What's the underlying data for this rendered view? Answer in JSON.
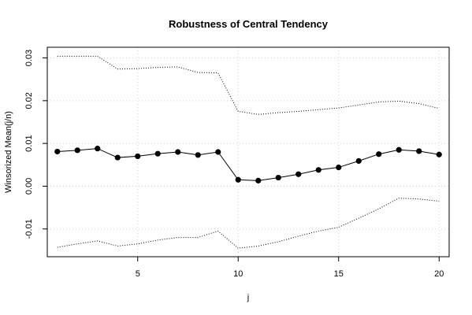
{
  "chart_data": {
    "type": "line",
    "title": "Robustness of Central Tendency",
    "xlabel": "j",
    "ylabel": "Winsorized Mean(j/n)",
    "xlim": [
      0.5,
      20.5
    ],
    "ylim": [
      -0.0165,
      0.0325
    ],
    "grid": true,
    "x": [
      1,
      2,
      3,
      4,
      5,
      6,
      7,
      8,
      9,
      10,
      11,
      12,
      13,
      14,
      15,
      16,
      17,
      18,
      19,
      20
    ],
    "x_ticks": [
      5,
      10,
      15,
      20
    ],
    "y_ticks": [
      -0.01,
      0.0,
      0.01,
      0.02,
      0.03
    ],
    "x_tick_labels": [
      "5",
      "10",
      "15",
      "20"
    ],
    "y_tick_labels": [
      "-0.01",
      "0.00",
      "0.01",
      "0.02",
      "0.03"
    ],
    "series": [
      {
        "style": "line-points",
        "values": [
          0.0081,
          0.0084,
          0.0088,
          0.0067,
          0.007,
          0.0076,
          0.008,
          0.0073,
          0.008,
          0.0015,
          0.0013,
          0.002,
          0.0028,
          0.0038,
          0.0044,
          0.0059,
          0.0075,
          0.0085,
          0.0082,
          0.0074
        ]
      },
      {
        "style": "dotted-upper",
        "values": [
          0.0304,
          0.0304,
          0.0304,
          0.0274,
          0.0275,
          0.0278,
          0.0279,
          0.0266,
          0.0265,
          0.0175,
          0.0168,
          0.0172,
          0.0175,
          0.0179,
          0.0183,
          0.019,
          0.0197,
          0.0199,
          0.0193,
          0.0182
        ]
      },
      {
        "style": "dotted-lower",
        "values": [
          -0.0143,
          -0.0135,
          -0.0128,
          -0.014,
          -0.0135,
          -0.0126,
          -0.012,
          -0.012,
          -0.0105,
          -0.0145,
          -0.014,
          -0.013,
          -0.0117,
          -0.0105,
          -0.0096,
          -0.0075,
          -0.0053,
          -0.0028,
          -0.003,
          -0.0035
        ]
      }
    ]
  }
}
